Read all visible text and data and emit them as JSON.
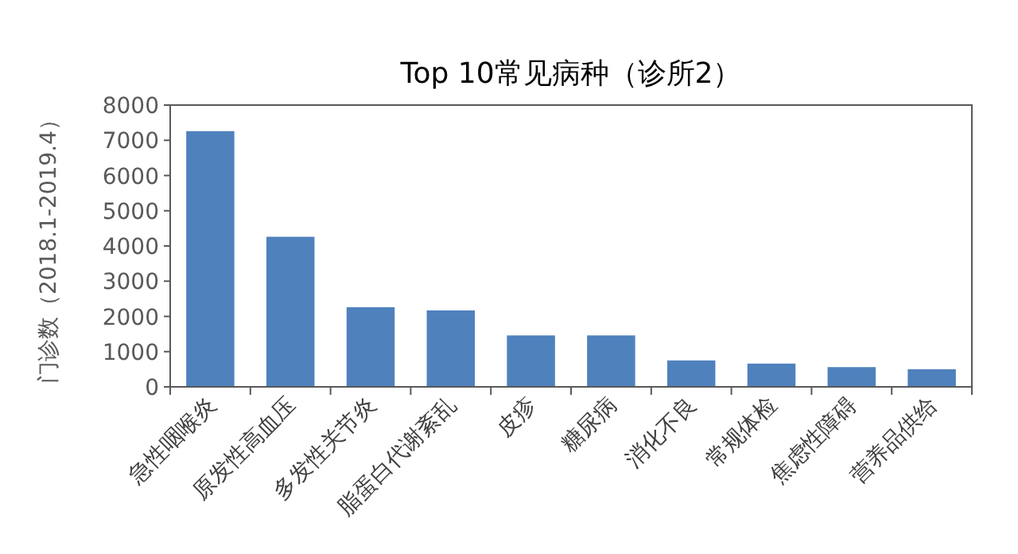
{
  "chart_data": {
    "type": "bar",
    "title": "Top 10常见病种（诊所2）",
    "ylabel": "门诊数（2018.1-2019.4）",
    "categories": [
      "急性咽喉炎",
      "原发性高血压",
      "多发性关节炎",
      "脂蛋白代谢紊乱",
      "皮疹",
      "糖尿病",
      "消化不良",
      "常规体检",
      "焦虑性障碍",
      "营养品供给"
    ],
    "values": [
      7260,
      4260,
      2260,
      2170,
      1460,
      1460,
      750,
      660,
      560,
      500
    ],
    "color": "#4f81bd",
    "ylim": [
      0,
      8000
    ],
    "yticks": [
      0,
      1000,
      2000,
      3000,
      4000,
      5000,
      6000,
      7000,
      8000
    ],
    "grid": false,
    "legend": false
  }
}
